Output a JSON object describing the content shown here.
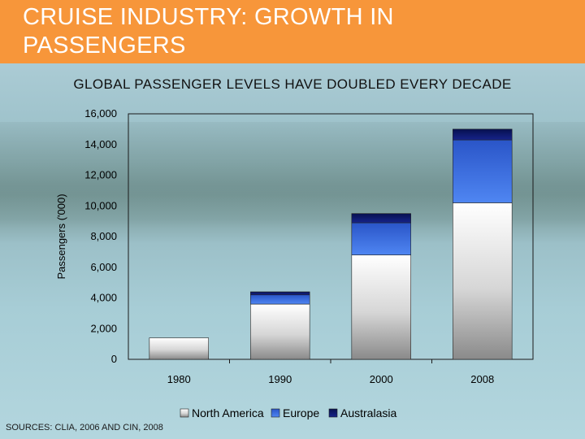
{
  "slide": {
    "title": "CRUISE INDUSTRY: GROWTH IN PASSENGERS",
    "subtitle": "GLOBAL PASSENGER LEVELS HAVE DOUBLED EVERY DECADE",
    "source": "SOURCES: CLIA, 2006 AND CIN, 2008"
  },
  "colors": {
    "header": "#f7963a",
    "north_america": "#d8d8d8",
    "europe": "#2f63dd",
    "australasia": "#0c1466"
  },
  "chart_data": {
    "type": "bar",
    "stacked": true,
    "categories": [
      "1980",
      "1990",
      "2000",
      "2008"
    ],
    "series": [
      {
        "name": "North America",
        "values": [
          1400,
          3600,
          6800,
          10200
        ]
      },
      {
        "name": "Europe",
        "values": [
          0,
          600,
          2100,
          4100
        ]
      },
      {
        "name": "Australasia",
        "values": [
          0,
          200,
          600,
          700
        ]
      }
    ],
    "ylabel": "Passengers ('000)",
    "ylim": [
      0,
      16000
    ],
    "yticks": [
      "0",
      "2,000",
      "4,000",
      "6,000",
      "8,000",
      "10,000",
      "12,000",
      "14,000",
      "16,000"
    ],
    "legend_position": "bottom"
  }
}
